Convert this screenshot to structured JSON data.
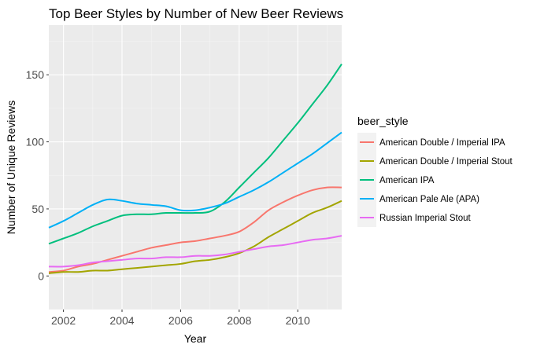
{
  "chart_data": {
    "type": "line",
    "title": "Top Beer Styles by Number of New Beer Reviews",
    "xlabel": "Year",
    "ylabel": "Number of Unique Reviews",
    "xlim": [
      2001.5,
      2011.5
    ],
    "ylim": [
      -25,
      187
    ],
    "x_ticks": [
      2002,
      2004,
      2006,
      2008,
      2010
    ],
    "y_ticks": [
      0,
      50,
      100,
      150
    ],
    "x_tick_labels": [
      "2002",
      "2004",
      "2006",
      "2008",
      "2010"
    ],
    "y_tick_labels": [
      "0",
      "50",
      "100",
      "150"
    ],
    "grid": true,
    "background": "#ebebeb",
    "legend": {
      "title": "beer_style",
      "position": "right"
    },
    "series": [
      {
        "name": "American Double / Imperial IPA",
        "color": "#F8766D",
        "x": [
          2001.5,
          2002,
          2002.5,
          2003,
          2003.5,
          2004,
          2004.5,
          2005,
          2005.5,
          2006,
          2006.5,
          2007,
          2007.5,
          2008,
          2008.5,
          2009,
          2009.5,
          2010,
          2010.5,
          2011,
          2011.5
        ],
        "values": [
          3,
          4,
          7,
          9,
          12,
          15,
          18,
          21,
          23,
          25,
          26,
          28,
          30,
          33,
          40,
          49,
          55,
          60,
          64,
          66,
          66
        ]
      },
      {
        "name": "American Double / Imperial Stout",
        "color": "#A3A500",
        "x": [
          2001.5,
          2002,
          2002.5,
          2003,
          2003.5,
          2004,
          2004.5,
          2005,
          2005.5,
          2006,
          2006.5,
          2007,
          2007.5,
          2008,
          2008.5,
          2009,
          2009.5,
          2010,
          2010.5,
          2011,
          2011.5
        ],
        "values": [
          2,
          3,
          3,
          4,
          4,
          5,
          6,
          7,
          8,
          9,
          11,
          12,
          14,
          17,
          22,
          29,
          35,
          41,
          47,
          51,
          56
        ]
      },
      {
        "name": "American IPA",
        "color": "#00BF7D",
        "x": [
          2001.5,
          2002,
          2002.5,
          2003,
          2003.5,
          2004,
          2004.5,
          2005,
          2005.5,
          2006,
          2006.5,
          2007,
          2007.5,
          2008,
          2008.5,
          2009,
          2009.5,
          2010,
          2010.5,
          2011,
          2011.5
        ],
        "values": [
          24,
          28,
          32,
          37,
          41,
          45,
          46,
          46,
          47,
          47,
          47,
          48,
          55,
          66,
          77,
          88,
          101,
          114,
          128,
          142,
          158
        ]
      },
      {
        "name": "American Pale Ale (APA)",
        "color": "#00B0F6",
        "x": [
          2001.5,
          2002,
          2002.5,
          2003,
          2003.5,
          2004,
          2004.5,
          2005,
          2005.5,
          2006,
          2006.5,
          2007,
          2007.5,
          2008,
          2008.5,
          2009,
          2009.5,
          2010,
          2010.5,
          2011,
          2011.5
        ],
        "values": [
          36,
          41,
          47,
          53,
          57,
          56,
          54,
          53,
          52,
          49,
          49,
          51,
          54,
          59,
          64,
          70,
          77,
          84,
          91,
          99,
          107
        ]
      },
      {
        "name": "Russian Imperial Stout",
        "color": "#E76BF3",
        "x": [
          2001.5,
          2002,
          2002.5,
          2003,
          2003.5,
          2004,
          2004.5,
          2005,
          2005.5,
          2006,
          2006.5,
          2007,
          2007.5,
          2008,
          2008.5,
          2009,
          2009.5,
          2010,
          2010.5,
          2011,
          2011.5
        ],
        "values": [
          7,
          7,
          8,
          10,
          11,
          12,
          13,
          13,
          14,
          14,
          15,
          15,
          16,
          18,
          20,
          22,
          23,
          25,
          27,
          28,
          30
        ]
      }
    ]
  }
}
